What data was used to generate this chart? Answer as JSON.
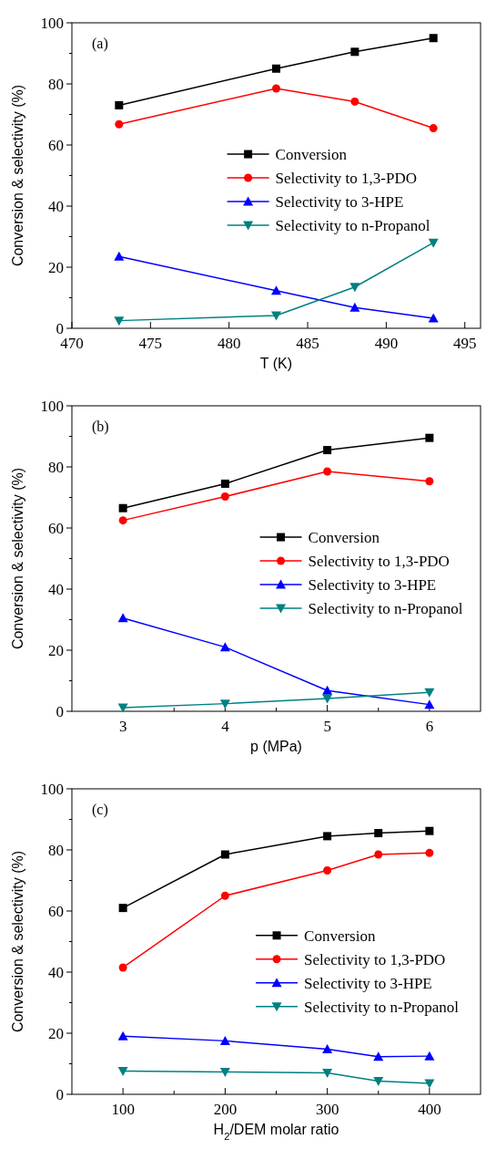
{
  "chart_data": [
    {
      "type": "line",
      "annotations": [
        "(a)"
      ],
      "xlabel": "T (K)",
      "ylabel": "Conversion & selectivity (%)",
      "x": [
        473,
        483,
        488,
        493
      ],
      "xlim": [
        470,
        496
      ],
      "xticks": [
        470,
        475,
        480,
        485,
        490,
        495
      ],
      "ylim": [
        0,
        100
      ],
      "yticks": [
        0,
        {
          "value": 10,
          "label": null
        },
        20,
        {
          "value": 30,
          "label": null
        },
        40,
        {
          "value": 50,
          "label": null
        },
        60,
        {
          "value": 70,
          "label": null
        },
        80,
        {
          "value": 90,
          "label": null
        },
        100
      ],
      "legend": "center",
      "series": [
        {
          "name": "Conversion",
          "color": "#000000",
          "marker": "square",
          "values": [
            73,
            85,
            90.5,
            95
          ]
        },
        {
          "name": "Selectivity to 1,3-PDO",
          "color": "#ff0000",
          "marker": "circle",
          "values": [
            66.8,
            78.5,
            74.2,
            65.5
          ]
        },
        {
          "name": "Selectivity to 3-HPE",
          "color": "#0000ff",
          "marker": "triangle",
          "values": [
            23.5,
            12.3,
            6.8,
            3.3
          ]
        },
        {
          "name": "Selectivity to n-Propanol",
          "color": "#008080",
          "marker": "triangle-down",
          "values": [
            2.5,
            4.2,
            13.5,
            28
          ]
        }
      ]
    },
    {
      "type": "line",
      "annotations": [
        "(b)"
      ],
      "xlabel": "p (MPa)",
      "ylabel": "Conversion & selectivity (%)",
      "x": [
        3,
        4,
        5,
        6
      ],
      "xlim": [
        2.5,
        6.5
      ],
      "xticks": [
        3,
        {
          "value": 3.5,
          "label": null
        },
        4,
        {
          "value": 4.5,
          "label": null
        },
        5,
        {
          "value": 5.5,
          "label": null
        },
        6
      ],
      "ylim": [
        0,
        100
      ],
      "yticks": [
        0,
        {
          "value": 10,
          "label": null
        },
        20,
        {
          "value": 30,
          "label": null
        },
        40,
        {
          "value": 50,
          "label": null
        },
        60,
        {
          "value": 70,
          "label": null
        },
        80,
        {
          "value": 90,
          "label": null
        },
        100
      ],
      "legend": "center right",
      "series": [
        {
          "name": "Conversion",
          "color": "#000000",
          "marker": "square",
          "values": [
            66.5,
            74.5,
            85.5,
            89.5
          ]
        },
        {
          "name": "Selectivity to 1,3-PDO",
          "color": "#ff0000",
          "marker": "circle",
          "values": [
            62.5,
            70.3,
            78.5,
            75.3
          ]
        },
        {
          "name": "Selectivity to 3-HPE",
          "color": "#0000ff",
          "marker": "triangle",
          "values": [
            30.5,
            21,
            6.8,
            2.2
          ]
        },
        {
          "name": "Selectivity to n-Propanol",
          "color": "#008080",
          "marker": "triangle-down",
          "values": [
            1.2,
            2.5,
            4.2,
            6.2
          ]
        }
      ]
    },
    {
      "type": "line",
      "annotations": [
        "(c)"
      ],
      "xlabel": "H$_{2}$/DEM molar ratio",
      "ylabel": "Conversion & selectivity (%)",
      "x": [
        100,
        200,
        300,
        350,
        400
      ],
      "xlim": [
        50,
        450
      ],
      "xticks": [
        100,
        {
          "value": 150,
          "label": null
        },
        200,
        {
          "value": 250,
          "label": null
        },
        300,
        {
          "value": 350,
          "label": null
        },
        400
      ],
      "ylim": [
        0,
        100
      ],
      "yticks": [
        0,
        {
          "value": 10,
          "label": null
        },
        20,
        {
          "value": 30,
          "label": null
        },
        40,
        {
          "value": 50,
          "label": null
        },
        60,
        {
          "value": 70,
          "label": null
        },
        80,
        {
          "value": 90,
          "label": null
        },
        100
      ],
      "legend": "right",
      "series": [
        {
          "name": "Conversion",
          "color": "#000000",
          "marker": "square",
          "values": [
            61,
            78.5,
            84.5,
            85.5,
            86.2
          ]
        },
        {
          "name": "Selectivity to 1,3-PDO",
          "color": "#ff0000",
          "marker": "circle",
          "values": [
            41.5,
            65,
            73.3,
            78.5,
            79
          ]
        },
        {
          "name": "Selectivity to 3-HPE",
          "color": "#0000ff",
          "marker": "triangle",
          "values": [
            19,
            17.5,
            14.8,
            12.3,
            12.5
          ]
        },
        {
          "name": "Selectivity to n-Propanol",
          "color": "#008080",
          "marker": "triangle-down",
          "values": [
            7.6,
            7.3,
            7,
            4.3,
            3.6
          ]
        }
      ]
    }
  ]
}
